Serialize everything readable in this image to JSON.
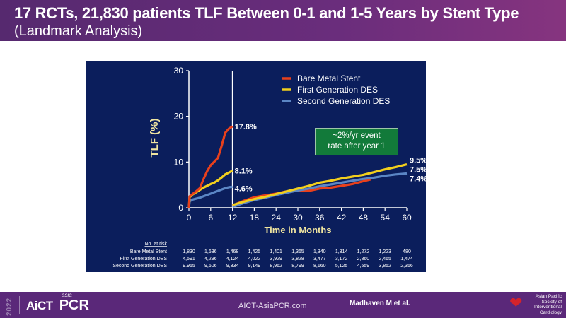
{
  "header": {
    "title": "17 RCTs, 21,830 patients  TLF Between 0-1 and 1-5 Years by Stent Type",
    "subtitle": "(Landmark Analysis)"
  },
  "callout": {
    "line1": "~2%/yr event",
    "line2": "rate after year 1"
  },
  "risk_table": {
    "heading": "No. at risk",
    "rows": [
      {
        "label": "Bare Metal Stent",
        "values": [
          "1,830",
          "1,636",
          "1,468",
          "1,425",
          "1,401",
          "1,365",
          "1,340",
          "1,314",
          "1,272",
          "1,223",
          "480"
        ]
      },
      {
        "label": "First Generation DES",
        "values": [
          "4,591",
          "4,296",
          "4,124",
          "4,022",
          "3,929",
          "3,828",
          "3,477",
          "3,172",
          "2,860",
          "2,465",
          "1,474"
        ]
      },
      {
        "label": "Second Generation DES",
        "values": [
          "9.955",
          "9,606",
          "9,334",
          "9,149",
          "8,962",
          "8,799",
          "8,160",
          "5,125",
          "4,559",
          "3,852",
          "2,366"
        ]
      }
    ]
  },
  "footer": {
    "year": "2022",
    "logo_main": "AiCT",
    "logo_small": "asia",
    "logo_pcr": "PCR",
    "website": "AICT-AsiaPCR.com",
    "author": "Madhaven M et al.",
    "society_lines": [
      "Asian Pacific",
      "Society of",
      "Interventional",
      "Cardiology"
    ]
  },
  "colors": {
    "bms": "#e8401c",
    "first_gen": "#f2cf1d",
    "second_gen": "#5b86c5",
    "panel": "#0b1e5c",
    "axis_label": "#f0e5a0"
  },
  "chart_data": {
    "type": "line",
    "title": "TLF Between 0-1 and 1-5 Years by Stent Type (Landmark Analysis)",
    "xlabel": "Time in Months",
    "ylabel": "TLF (%)",
    "xlim": [
      0,
      60
    ],
    "ylim": [
      0,
      30
    ],
    "xticks": [
      0,
      6,
      12,
      18,
      24,
      30,
      36,
      42,
      48,
      54,
      60
    ],
    "yticks": [
      0,
      10,
      20,
      30
    ],
    "landmark_month": 12,
    "legend_position": "top-right",
    "series": [
      {
        "name": "Bare Metal Stent",
        "key": "bms",
        "segment1": [
          [
            0,
            0
          ],
          [
            0.2,
            2.5
          ],
          [
            1,
            3
          ],
          [
            2,
            3.6
          ],
          [
            3,
            4.3
          ],
          [
            4,
            6.2
          ],
          [
            5,
            8
          ],
          [
            6,
            9.3
          ],
          [
            7,
            10.1
          ],
          [
            8,
            10.9
          ],
          [
            9,
            13.5
          ],
          [
            10,
            16.4
          ],
          [
            11,
            17.3
          ],
          [
            12,
            17.8
          ]
        ],
        "segment2": [
          [
            12,
            0.5
          ],
          [
            15,
            1.5
          ],
          [
            18,
            2.3
          ],
          [
            21,
            2.7
          ],
          [
            24,
            3.1
          ],
          [
            27,
            3.6
          ],
          [
            30,
            3.7
          ],
          [
            33,
            3.7
          ],
          [
            36,
            4.2
          ],
          [
            39,
            4.4
          ],
          [
            42,
            4.8
          ],
          [
            45,
            5.2
          ],
          [
            48,
            5.8
          ],
          [
            50,
            6.2
          ]
        ],
        "labels": [
          {
            "x": 12,
            "text": "17.8%"
          }
        ]
      },
      {
        "name": "First Generation DES",
        "key": "first_gen",
        "segment1": [
          [
            0,
            0
          ],
          [
            0.2,
            2.3
          ],
          [
            1,
            2.9
          ],
          [
            2,
            3.4
          ],
          [
            3,
            3.9
          ],
          [
            4,
            4.4
          ],
          [
            5,
            4.8
          ],
          [
            6,
            5.2
          ],
          [
            7,
            5.5
          ],
          [
            8,
            6.0
          ],
          [
            9,
            6.6
          ],
          [
            10,
            7.3
          ],
          [
            11,
            7.7
          ],
          [
            12,
            8.1
          ]
        ],
        "segment2": [
          [
            12,
            0.6
          ],
          [
            15,
            1.3
          ],
          [
            18,
            1.9
          ],
          [
            21,
            2.4
          ],
          [
            24,
            3.0
          ],
          [
            27,
            3.6
          ],
          [
            30,
            4.2
          ],
          [
            33,
            4.8
          ],
          [
            36,
            5.5
          ],
          [
            39,
            5.9
          ],
          [
            42,
            6.4
          ],
          [
            45,
            6.8
          ],
          [
            48,
            7.2
          ],
          [
            51,
            7.8
          ],
          [
            54,
            8.4
          ],
          [
            57,
            8.9
          ],
          [
            60,
            9.5
          ]
        ],
        "labels": [
          {
            "x": 60,
            "text": "9.5%"
          },
          {
            "x": 12,
            "text": "8.1%"
          }
        ]
      },
      {
        "name": "Second Generation DES",
        "key": "second_gen",
        "segment1": [
          [
            0,
            0
          ],
          [
            0.2,
            1.4
          ],
          [
            1,
            1.8
          ],
          [
            2,
            2.0
          ],
          [
            3,
            2.2
          ],
          [
            4,
            2.5
          ],
          [
            5,
            2.8
          ],
          [
            6,
            3.1
          ],
          [
            7,
            3.4
          ],
          [
            8,
            3.7
          ],
          [
            9,
            4.0
          ],
          [
            10,
            4.3
          ],
          [
            11,
            4.5
          ],
          [
            12,
            4.6
          ]
        ],
        "segment2": [
          [
            12,
            0.2
          ],
          [
            15,
            1.0
          ],
          [
            18,
            1.7
          ],
          [
            21,
            2.2
          ],
          [
            24,
            2.8
          ],
          [
            27,
            3.3
          ],
          [
            30,
            3.8
          ],
          [
            33,
            4.2
          ],
          [
            36,
            4.7
          ],
          [
            39,
            5.1
          ],
          [
            42,
            5.5
          ],
          [
            45,
            5.9
          ],
          [
            48,
            6.3
          ],
          [
            51,
            6.6
          ],
          [
            54,
            7.0
          ],
          [
            57,
            7.3
          ],
          [
            60,
            7.5
          ]
        ],
        "labels": [
          {
            "x": 60,
            "text": "7.5%"
          },
          {
            "x": 12,
            "text": "4.6%"
          }
        ]
      }
    ],
    "end_labels_60": [
      "9.5%",
      "7.5%",
      "7.4%"
    ],
    "risk_table_months": [
      0,
      6,
      12,
      18,
      24,
      30,
      36,
      42,
      48,
      54,
      60
    ]
  }
}
